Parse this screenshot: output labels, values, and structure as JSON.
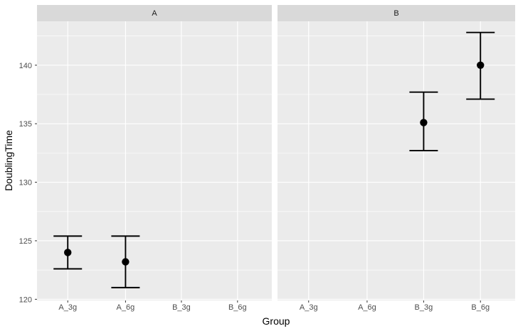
{
  "chart_data": {
    "type": "scatter",
    "title": "",
    "xlabel": "Group",
    "ylabel": "DoublingTime",
    "categories": [
      "A_3g",
      "A_6g",
      "B_3g",
      "B_6g"
    ],
    "y_ticks": [
      120,
      125,
      130,
      135,
      140
    ],
    "y_minor_gridlines": [
      122.5,
      127.5,
      132.5,
      137.5,
      142.5
    ],
    "ylim": [
      119.9,
      143.75
    ],
    "legend": "none",
    "grid": {
      "major": true,
      "minor": true
    },
    "facets": [
      {
        "label": "A",
        "points": [
          {
            "x": "A_3g",
            "y": 124.0,
            "ymin": 122.6,
            "ymax": 125.4
          },
          {
            "x": "A_6g",
            "y": 123.2,
            "ymin": 121.0,
            "ymax": 125.4
          }
        ]
      },
      {
        "label": "B",
        "points": [
          {
            "x": "B_3g",
            "y": 135.1,
            "ymin": 132.7,
            "ymax": 137.7
          },
          {
            "x": "B_6g",
            "y": 140.0,
            "ymin": 137.1,
            "ymax": 142.8
          }
        ]
      }
    ]
  },
  "colors": {
    "background": "#FFFFFF",
    "panel_bg": "#EBEBEB",
    "strip_bg": "#D9D9D9",
    "grid_line": "#FFFFFF",
    "axis_text": "#4D4D4D",
    "strip_text": "#1A1A1A",
    "axis_title": "#000000",
    "tick_mark": "#333333",
    "point": "#000000",
    "error_bar": "#000000"
  }
}
